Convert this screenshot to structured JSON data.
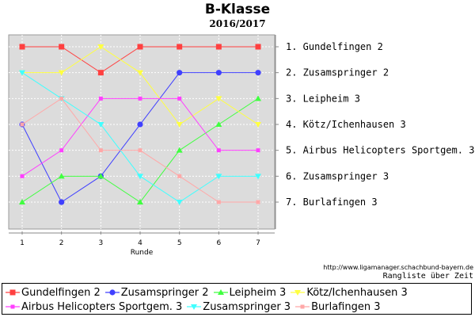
{
  "chart_data": {
    "type": "line",
    "title": "B-Klasse",
    "subtitle": "2016/2017",
    "xlabel": "Runde",
    "x": [
      1,
      2,
      3,
      4,
      5,
      6,
      7
    ],
    "ylim": [
      7,
      1
    ],
    "grid": true,
    "legend_position": "bottom",
    "series": [
      {
        "name": "Gundelfingen 2",
        "values": [
          1,
          1,
          2,
          1,
          1,
          1,
          1
        ],
        "color": "#ff4040",
        "marker": "square"
      },
      {
        "name": "Zusamspringer 2",
        "values": [
          4,
          7,
          6,
          4,
          2,
          2,
          2
        ],
        "color": "#4040ff",
        "marker": "circle"
      },
      {
        "name": "Leipheim 3",
        "values": [
          7,
          6,
          6,
          7,
          5,
          4,
          3
        ],
        "color": "#40ff40",
        "marker": "triangle-up"
      },
      {
        "name": "Kötz/Ichenhausen 3",
        "values": [
          2,
          2,
          1,
          2,
          4,
          3,
          4
        ],
        "color": "#ffff40",
        "marker": "triangle-down"
      },
      {
        "name": "Airbus Helicopters Sportgem. 3",
        "values": [
          6,
          5,
          3,
          3,
          3,
          5,
          5
        ],
        "color": "#ff40ff",
        "marker": "square-small"
      },
      {
        "name": "Zusamspringer 3",
        "values": [
          2,
          3,
          4,
          6,
          7,
          6,
          6
        ],
        "color": "#40ffff",
        "marker": "triangle-down"
      },
      {
        "name": "Burlafingen 3",
        "values": [
          4,
          3,
          5,
          5,
          6,
          7,
          7
        ],
        "color": "#ffa8a8",
        "marker": "square-small"
      }
    ],
    "right_labels": [
      "1. Gundelfingen 2",
      "2. Zusamspringer 2",
      "3. Leipheim 3",
      "4. Kötz/Ichenhausen 3",
      "5. Airbus Helicopters Sportgem. 3",
      "6. Zusamspringer 3",
      "7. Burlafingen 3"
    ]
  },
  "footer": {
    "url": "http://www.ligamanager.schachbund-bayern.de",
    "caption": "Rangliste über Zeit"
  }
}
